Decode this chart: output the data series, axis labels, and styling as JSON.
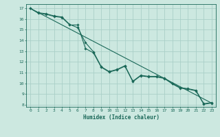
{
  "title": "",
  "xlabel": "Humidex (Indice chaleur)",
  "ylabel": "",
  "bg_color": "#cce8e0",
  "grid_color": "#aacfc8",
  "line_color": "#1a6858",
  "xlim": [
    -0.5,
    23.5
  ],
  "ylim": [
    7.8,
    17.4
  ],
  "x_ticks": [
    0,
    1,
    2,
    3,
    4,
    5,
    6,
    7,
    8,
    9,
    10,
    11,
    12,
    13,
    14,
    15,
    16,
    17,
    18,
    19,
    20,
    21,
    22,
    23
  ],
  "y_ticks": [
    8,
    9,
    10,
    11,
    12,
    13,
    14,
    15,
    16,
    17
  ],
  "series1_x": [
    0,
    1,
    2,
    3,
    4,
    5,
    6,
    7,
    8,
    9,
    10,
    11,
    12,
    13,
    14,
    15,
    16,
    17,
    18,
    19,
    20,
    21,
    22,
    23
  ],
  "series1_y": [
    17.0,
    16.6,
    16.5,
    16.3,
    16.2,
    15.5,
    15.2,
    13.8,
    12.95,
    11.55,
    11.1,
    11.3,
    11.65,
    10.2,
    10.75,
    10.65,
    10.65,
    10.5,
    10.0,
    9.6,
    9.5,
    9.35,
    8.1,
    8.2
  ],
  "series2_x": [
    0,
    1,
    2,
    3,
    4,
    5,
    6,
    7,
    8,
    9,
    10,
    11,
    12,
    13,
    14,
    15,
    16,
    17,
    18,
    19,
    20,
    21,
    22,
    23
  ],
  "series2_y": [
    17.0,
    16.55,
    16.45,
    16.25,
    16.15,
    15.45,
    15.45,
    13.25,
    12.85,
    11.5,
    11.05,
    11.25,
    11.6,
    10.15,
    10.7,
    10.6,
    10.6,
    10.45,
    9.95,
    9.55,
    9.45,
    9.3,
    8.05,
    8.15
  ],
  "series3_x": [
    0,
    23
  ],
  "series3_y": [
    17.0,
    8.15
  ]
}
